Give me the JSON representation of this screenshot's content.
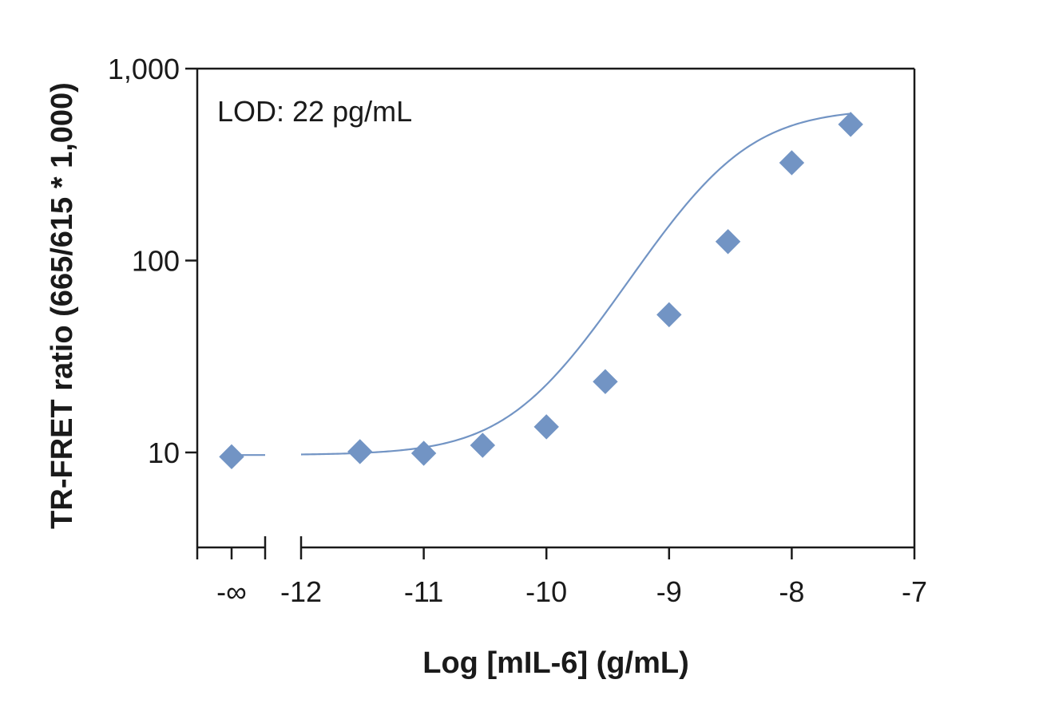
{
  "chart_data": {
    "type": "scatter",
    "title": "",
    "xlabel": "Log [mIL-6] (g/mL)",
    "ylabel": "TR-FRET ratio (665/615 * 1,000)",
    "annotation": "LOD: 22 pg/mL",
    "y_scale": "log",
    "ylim": [
      3.2,
      1000
    ],
    "xlim": [
      -12,
      -7
    ],
    "x_break": {
      "label": "-∞",
      "description": "broken axis segment holding the zero-concentration point"
    },
    "x_ticks": [
      -12,
      -11,
      -10,
      -9,
      -8,
      -7
    ],
    "x_tick_labels": [
      "-12",
      "-11",
      "-10",
      "-9",
      "-8",
      "-7"
    ],
    "y_ticks": [
      10,
      100,
      1000
    ],
    "y_tick_labels": [
      "10",
      "100",
      "1,000"
    ],
    "grid": false,
    "marker": "diamond",
    "color": "#7294c4",
    "series": [
      {
        "points": [
          {
            "x": "-∞",
            "y": 9.5
          },
          {
            "x": -11.52,
            "y": 10.1
          },
          {
            "x": -11.0,
            "y": 9.9
          },
          {
            "x": -10.52,
            "y": 10.9
          },
          {
            "x": -10.0,
            "y": 13.6
          },
          {
            "x": -9.52,
            "y": 23.4
          },
          {
            "x": -9.0,
            "y": 52.2
          },
          {
            "x": -8.52,
            "y": 125.5
          },
          {
            "x": -8.0,
            "y": 323.2
          },
          {
            "x": -7.52,
            "y": 512.3
          }
        ]
      }
    ],
    "fit": {
      "model": "4PL",
      "bottom": 9.7,
      "top": 620,
      "log_ec50": -8.55,
      "hill": 1.15,
      "baseline_left": 9.7
    }
  }
}
